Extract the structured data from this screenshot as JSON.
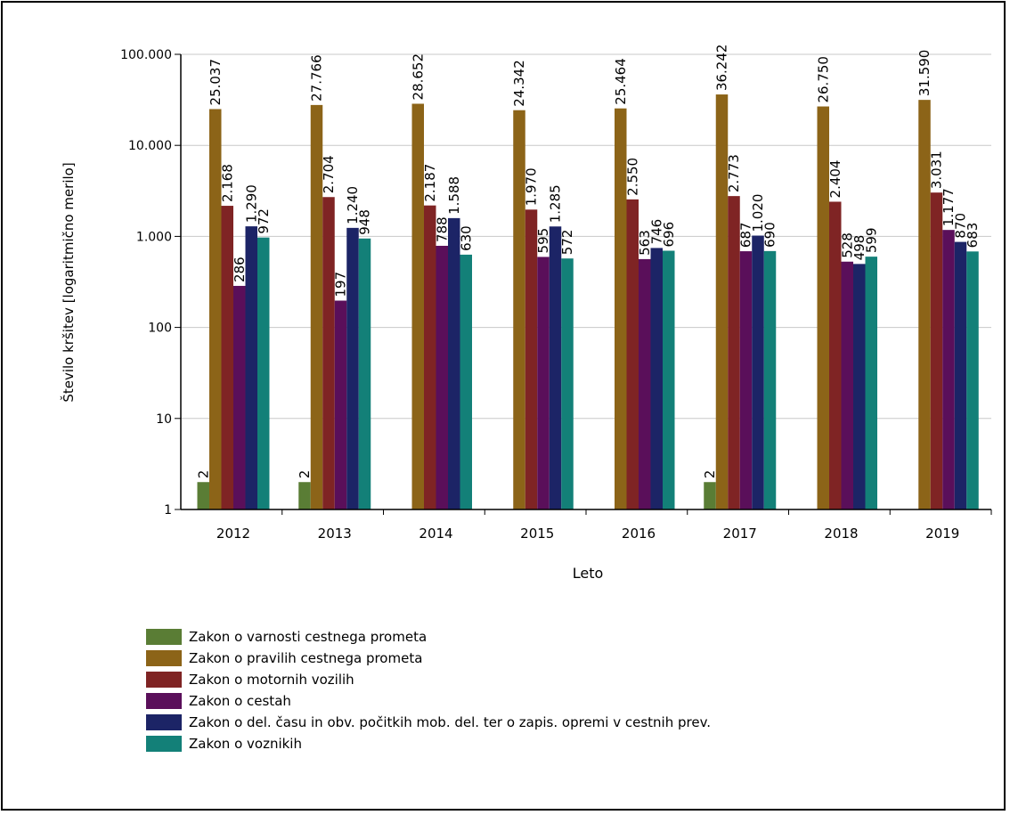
{
  "chart_data": {
    "type": "bar",
    "title": "",
    "xlabel": "Leto",
    "ylabel": "Število kršitev [logaritmično merilo]",
    "yscale": "log",
    "ylim": [
      1,
      100000
    ],
    "yticks": [
      1,
      10,
      100,
      1000,
      10000,
      100000
    ],
    "ytick_labels": [
      "1",
      "10",
      "100",
      "1.000",
      "10.000",
      "100.000"
    ],
    "grid": true,
    "legend_position": "bottom-left",
    "categories": [
      "2012",
      "2013",
      "2014",
      "2015",
      "2016",
      "2017",
      "2018",
      "2019"
    ],
    "series": [
      {
        "name": "Zakon o varnosti cestnega prometa",
        "color": "#5a7d35",
        "values": [
          2,
          2,
          null,
          null,
          null,
          2,
          null,
          null
        ],
        "labels": [
          "2",
          "2",
          null,
          null,
          null,
          "2",
          null,
          null
        ]
      },
      {
        "name": "Zakon o pravilih cestnega prometa",
        "color": "#8c6418",
        "values": [
          25037,
          27766,
          28652,
          24342,
          25464,
          36242,
          26750,
          31590
        ],
        "labels": [
          "25.037",
          "27.766",
          "28.652",
          "24.342",
          "25.464",
          "36.242",
          "26.750",
          "31.590"
        ]
      },
      {
        "name": "Zakon o motornih vozilih",
        "color": "#7f2424",
        "values": [
          2168,
          2704,
          2187,
          1970,
          2550,
          2773,
          2404,
          3031
        ],
        "labels": [
          "2.168",
          "2.704",
          "2.187",
          "1.970",
          "2.550",
          "2.773",
          "2.404",
          "3.031"
        ]
      },
      {
        "name": "Zakon o cestah",
        "color": "#5a0f5a",
        "values": [
          286,
          197,
          788,
          595,
          563,
          687,
          528,
          1177
        ],
        "labels": [
          "286",
          "197",
          "788",
          "595",
          "563",
          "687",
          "528",
          "1.177"
        ]
      },
      {
        "name": "Zakon o del. času in obv. počitkih mob. del. ter o zapis. opremi v cestnih prev.",
        "color": "#1c2466",
        "values": [
          1290,
          1240,
          1588,
          1285,
          746,
          1020,
          498,
          870
        ],
        "labels": [
          "1.290",
          "1.240",
          "1.588",
          "1.285",
          "746",
          "1.020",
          "498",
          "870"
        ]
      },
      {
        "name": "Zakon o voznikih",
        "color": "#138078",
        "values": [
          972,
          948,
          630,
          572,
          696,
          690,
          599,
          683
        ],
        "labels": [
          "972",
          "948",
          "630",
          "572",
          "696",
          "690",
          "599",
          "683"
        ]
      }
    ]
  }
}
